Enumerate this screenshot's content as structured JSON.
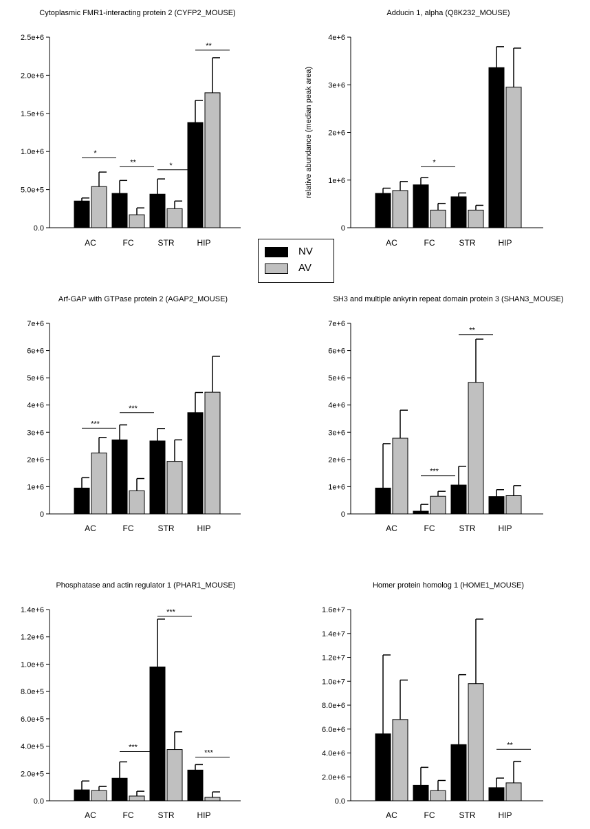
{
  "figure": {
    "legend": {
      "entries": [
        {
          "label": "NV",
          "color": "#000000"
        },
        {
          "label": "AV",
          "color": "#c0c0c0"
        }
      ]
    }
  },
  "chart_data": [
    {
      "type": "bar",
      "title": "Cytoplasmic FMR1-interacting protein 2 (CYFP2_MOUSE)",
      "ylabel": "",
      "categories": [
        "AC",
        "FC",
        "STR",
        "HIP"
      ],
      "ylim": [
        0,
        2500000
      ],
      "yticks": [
        0,
        500000,
        1000000,
        1500000,
        2000000,
        2500000
      ],
      "ytick_labels": [
        "0.0",
        "5.0e+5",
        "1.0e+6",
        "1.5e+6",
        "2.0e+6",
        "2.5e+6"
      ],
      "series": [
        {
          "name": "NV",
          "values": [
            350000,
            450000,
            440000,
            1380000
          ],
          "errors": [
            40000,
            170000,
            200000,
            290000
          ]
        },
        {
          "name": "AV",
          "values": [
            540000,
            170000,
            250000,
            1770000
          ],
          "errors": [
            190000,
            90000,
            100000,
            460000
          ]
        }
      ],
      "annotations": [
        {
          "category": "AC",
          "label": "*",
          "y": 920000
        },
        {
          "category": "FC",
          "label": "**",
          "y": 800000
        },
        {
          "category": "STR",
          "label": "*",
          "y": 760000
        },
        {
          "category": "HIP",
          "label": "**",
          "y": 2330000
        }
      ]
    },
    {
      "type": "bar",
      "title": "Adducin 1, alpha (Q8K232_MOUSE)",
      "ylabel": "relative abundance (median peak area)",
      "categories": [
        "AC",
        "FC",
        "STR",
        "HIP"
      ],
      "ylim": [
        0,
        4000000
      ],
      "yticks": [
        0,
        1000000,
        2000000,
        3000000,
        4000000
      ],
      "ytick_labels": [
        "0",
        "1e+6",
        "2e+6",
        "3e+6",
        "4e+6"
      ],
      "series": [
        {
          "name": "NV",
          "values": [
            720000,
            900000,
            650000,
            3360000
          ],
          "errors": [
            110000,
            150000,
            80000,
            440000
          ]
        },
        {
          "name": "AV",
          "values": [
            780000,
            370000,
            370000,
            2950000
          ],
          "errors": [
            190000,
            140000,
            100000,
            820000
          ]
        }
      ],
      "annotations": [
        {
          "category": "FC",
          "label": "*",
          "y": 1280000
        }
      ]
    },
    {
      "type": "bar",
      "title": "Arf-GAP with GTPase protein 2 (AGAP2_MOUSE)",
      "ylabel": "",
      "categories": [
        "AC",
        "FC",
        "STR",
        "HIP"
      ],
      "ylim": [
        0,
        7000000
      ],
      "yticks": [
        0,
        1000000,
        2000000,
        3000000,
        4000000,
        5000000,
        6000000,
        7000000
      ],
      "ytick_labels": [
        "0",
        "1e+6",
        "2e+6",
        "3e+6",
        "4e+6",
        "5e+6",
        "6e+6",
        "7e+6"
      ],
      "series": [
        {
          "name": "NV",
          "values": [
            950000,
            2720000,
            2680000,
            3720000
          ],
          "errors": [
            380000,
            550000,
            460000,
            740000
          ]
        },
        {
          "name": "AV",
          "values": [
            2240000,
            850000,
            1930000,
            4470000
          ],
          "errors": [
            570000,
            450000,
            790000,
            1320000
          ]
        }
      ],
      "annotations": [
        {
          "category": "AC",
          "label": "***",
          "y": 3150000
        },
        {
          "category": "FC",
          "label": "***",
          "y": 3720000
        }
      ]
    },
    {
      "type": "bar",
      "title": "SH3 and multiple ankyrin repeat domain protein 3 (SHAN3_MOUSE)",
      "ylabel": "",
      "categories": [
        "AC",
        "FC",
        "STR",
        "HIP"
      ],
      "ylim": [
        0,
        7000000
      ],
      "yticks": [
        0,
        1000000,
        2000000,
        3000000,
        4000000,
        5000000,
        6000000,
        7000000
      ],
      "ytick_labels": [
        "0",
        "1e+6",
        "2e+6",
        "3e+6",
        "4e+6",
        "5e+6",
        "6e+6",
        "7e+6"
      ],
      "series": [
        {
          "name": "NV",
          "values": [
            950000,
            100000,
            1060000,
            640000
          ],
          "errors": [
            1630000,
            250000,
            690000,
            250000
          ]
        },
        {
          "name": "AV",
          "values": [
            2780000,
            650000,
            4830000,
            670000
          ],
          "errors": [
            1030000,
            180000,
            1590000,
            370000
          ]
        }
      ],
      "annotations": [
        {
          "category": "FC",
          "label": "***",
          "y": 1400000
        },
        {
          "category": "STR",
          "label": "**",
          "y": 6580000
        }
      ]
    },
    {
      "type": "bar",
      "title": "Phosphatase and actin regulator 1 (PHAR1_MOUSE)",
      "ylabel": "",
      "categories": [
        "AC",
        "FC",
        "STR",
        "HIP"
      ],
      "ylim": [
        0,
        1400000
      ],
      "yticks": [
        0,
        200000,
        400000,
        600000,
        800000,
        1000000,
        1200000,
        1400000
      ],
      "ytick_labels": [
        "0.0",
        "2.0e+5",
        "4.0e+5",
        "6.0e+5",
        "8.0e+5",
        "1.0e+6",
        "1.2e+6",
        "1.4e+6"
      ],
      "series": [
        {
          "name": "NV",
          "values": [
            80000,
            165000,
            980000,
            225000
          ],
          "errors": [
            65000,
            120000,
            350000,
            40000
          ]
        },
        {
          "name": "AV",
          "values": [
            75000,
            35000,
            375000,
            25000
          ],
          "errors": [
            30000,
            35000,
            130000,
            40000
          ]
        }
      ],
      "annotations": [
        {
          "category": "FC",
          "label": "***",
          "y": 360000
        },
        {
          "category": "STR",
          "label": "***",
          "y": 1350000
        },
        {
          "category": "HIP",
          "label": "***",
          "y": 320000
        }
      ]
    },
    {
      "type": "bar",
      "title": "Homer protein homolog 1 (HOME1_MOUSE)",
      "ylabel": "",
      "categories": [
        "AC",
        "FC",
        "STR",
        "HIP"
      ],
      "ylim": [
        0,
        16000000
      ],
      "yticks": [
        0,
        2000000,
        4000000,
        6000000,
        8000000,
        10000000,
        12000000,
        14000000,
        16000000
      ],
      "ytick_labels": [
        "0.0",
        "2.0e+6",
        "4.0e+6",
        "6.0e+6",
        "8.0e+6",
        "1.0e+7",
        "1.2e+7",
        "1.4e+7",
        "1.6e+7"
      ],
      "series": [
        {
          "name": "NV",
          "values": [
            5600000,
            1300000,
            4700000,
            1100000
          ],
          "errors": [
            6600000,
            1500000,
            5850000,
            800000
          ]
        },
        {
          "name": "AV",
          "values": [
            6800000,
            850000,
            9800000,
            1500000
          ],
          "errors": [
            3300000,
            850000,
            5400000,
            1800000
          ]
        }
      ],
      "annotations": [
        {
          "category": "HIP",
          "label": "**",
          "y": 4300000
        }
      ]
    }
  ]
}
